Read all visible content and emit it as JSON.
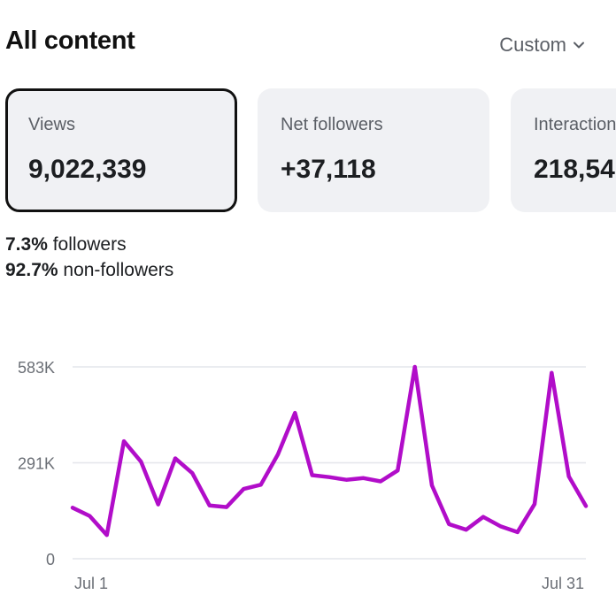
{
  "header": {
    "title": "All content",
    "range_label": "Custom"
  },
  "cards": [
    {
      "label": "Views",
      "value": "9,022,339",
      "selected": true
    },
    {
      "label": "Net followers",
      "value": "+37,118",
      "selected": false
    },
    {
      "label": "Interactions",
      "value": "218,54",
      "selected": false
    }
  ],
  "breakdown": {
    "followers_pct": "7.3%",
    "followers_label": "followers",
    "nonfollowers_pct": "92.7%",
    "nonfollowers_label": "non-followers"
  },
  "colors": {
    "accent": "#b10dc9",
    "selected_border": "#111111",
    "card_bg": "#f0f1f4"
  },
  "chart_data": {
    "type": "line",
    "y_ticks": [
      "583K",
      "291K",
      "0"
    ],
    "x_ticks": [
      "Jul 1",
      "Jul 31"
    ],
    "ylim": [
      0,
      583000
    ],
    "grid": true,
    "series": [
      {
        "values": [
          155000,
          130000,
          72000,
          357000,
          295000,
          165000,
          305000,
          260000,
          162000,
          157000,
          212000,
          225000,
          317000,
          443000,
          254000,
          248000,
          240000,
          245000,
          235000,
          268000,
          583000,
          223000,
          105000,
          88000,
          127000,
          99000,
          81000,
          166000,
          565000,
          250000,
          160000
        ]
      }
    ]
  }
}
